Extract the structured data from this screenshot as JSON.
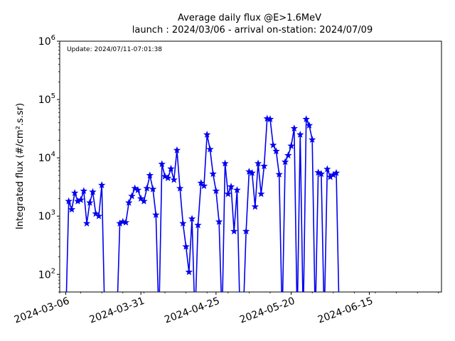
{
  "chart_data": {
    "type": "line",
    "title_line1": "Average daily flux @E>1.6MeV",
    "title_line2": "launch : 2024/03/06 - arrival on-station: 2024/07/09",
    "annotation": "Update: 2024/07/11-07:01:38",
    "ylabel": "Integrated flux (#/cm².s.sr)",
    "yscale": "log",
    "ylim": [
      50,
      1000000
    ],
    "xlim": [
      "2024-03-04",
      "2024-07-09"
    ],
    "yticks": [
      {
        "value": 100,
        "base": "10",
        "exp": "2"
      },
      {
        "value": 1000,
        "base": "10",
        "exp": "3"
      },
      {
        "value": 10000,
        "base": "10",
        "exp": "4"
      },
      {
        "value": 100000,
        "base": "10",
        "exp": "5"
      },
      {
        "value": 1000000,
        "base": "10",
        "exp": "6"
      }
    ],
    "xticks": [
      "2024-03-06",
      "2024-03-31",
      "2024-04-25",
      "2024-05-20",
      "2024-06-15"
    ],
    "grid": false,
    "line_color": "#0000ee",
    "series": [
      {
        "x": [
          "2024-03-06",
          "2024-03-07",
          "2024-03-08",
          "2024-03-09",
          "2024-03-10",
          "2024-03-11",
          "2024-03-12",
          "2024-03-13",
          "2024-03-14",
          "2024-03-15",
          "2024-03-16",
          "2024-03-17",
          "2024-03-18",
          "2024-03-19",
          "2024-03-20",
          "2024-03-21",
          "2024-03-22",
          "2024-03-23",
          "2024-03-24",
          "2024-03-25",
          "2024-03-26",
          "2024-03-27",
          "2024-03-28",
          "2024-03-29",
          "2024-03-30",
          "2024-03-31",
          "2024-04-01",
          "2024-04-02",
          "2024-04-03",
          "2024-04-04",
          "2024-04-05",
          "2024-04-06",
          "2024-04-07",
          "2024-04-08",
          "2024-04-09",
          "2024-04-10",
          "2024-04-11",
          "2024-04-12",
          "2024-04-13",
          "2024-04-14",
          "2024-04-15",
          "2024-04-16",
          "2024-04-17",
          "2024-04-18",
          "2024-04-19",
          "2024-04-20",
          "2024-04-21",
          "2024-04-22",
          "2024-04-23",
          "2024-04-24",
          "2024-04-25",
          "2024-04-26",
          "2024-04-27",
          "2024-04-28",
          "2024-04-29",
          "2024-04-30",
          "2024-05-01",
          "2024-05-02",
          "2024-05-03",
          "2024-05-04",
          "2024-05-05",
          "2024-05-06",
          "2024-05-07",
          "2024-05-08",
          "2024-05-09",
          "2024-05-10",
          "2024-05-11",
          "2024-05-12",
          "2024-05-13",
          "2024-05-14",
          "2024-05-15",
          "2024-05-16",
          "2024-05-17",
          "2024-05-18",
          "2024-05-19",
          "2024-05-20",
          "2024-05-21",
          "2024-05-22",
          "2024-05-23",
          "2024-05-24",
          "2024-05-25",
          "2024-05-26",
          "2024-05-27",
          "2024-05-28",
          "2024-05-29",
          "2024-05-30",
          "2024-05-31",
          "2024-06-01",
          "2024-06-02",
          "2024-06-03",
          "2024-06-04",
          "2024-06-05",
          "2024-06-06",
          "2024-06-07",
          "2024-06-08",
          "2024-06-09"
        ],
        "y": [
          null,
          1800,
          1300,
          2500,
          1800,
          1900,
          2700,
          750,
          1700,
          2600,
          1100,
          1000,
          3400,
          null,
          null,
          null,
          null,
          null,
          750,
          800,
          780,
          1700,
          2200,
          3000,
          2800,
          2000,
          1800,
          3000,
          5000,
          2900,
          1050,
          null,
          7800,
          4800,
          4500,
          6500,
          4200,
          13500,
          3000,
          750,
          300,
          110,
          900,
          null,
          700,
          3700,
          3300,
          25000,
          14000,
          5300,
          2700,
          800,
          null,
          8000,
          2400,
          3200,
          550,
          2800,
          null,
          null,
          550,
          5800,
          5500,
          1450,
          8000,
          2400,
          7200,
          47000,
          46000,
          16500,
          13000,
          5200,
          null,
          8500,
          11000,
          16000,
          32000,
          null,
          25000,
          null,
          46000,
          36000,
          20500,
          null,
          5600,
          5300,
          null,
          6400,
          4700,
          5100,
          5500,
          null,
          null,
          null,
          null,
          null
        ]
      }
    ]
  }
}
